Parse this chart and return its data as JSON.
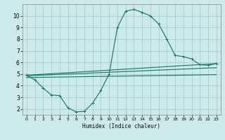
{
  "bg_color": "#cceaea",
  "grid_color": "#aacccc",
  "line_color": "#1a7a6a",
  "xlabel": "Humidex (Indice chaleur)",
  "xlim": [
    -0.5,
    23.5
  ],
  "ylim": [
    1.5,
    11.0
  ],
  "yticks": [
    2,
    3,
    4,
    5,
    6,
    7,
    8,
    9,
    10
  ],
  "xticks": [
    0,
    1,
    2,
    3,
    4,
    5,
    6,
    7,
    8,
    9,
    10,
    11,
    12,
    13,
    14,
    15,
    16,
    17,
    18,
    19,
    20,
    21,
    22,
    23
  ],
  "curve1_x": [
    0,
    1,
    2,
    3,
    4,
    5,
    6,
    7,
    8,
    9,
    10,
    11,
    12,
    13,
    14,
    15,
    16,
    17,
    18,
    19,
    20,
    21,
    22,
    23
  ],
  "curve1_y": [
    4.9,
    4.5,
    3.8,
    3.2,
    3.15,
    2.1,
    1.75,
    1.8,
    2.5,
    3.6,
    5.0,
    9.0,
    10.4,
    10.55,
    10.3,
    10.0,
    9.3,
    8.0,
    6.6,
    6.5,
    6.3,
    5.8,
    5.75,
    5.9
  ],
  "line2_x": [
    0,
    23
  ],
  "line2_y": [
    4.9,
    5.9
  ],
  "line3_x": [
    0,
    23
  ],
  "line3_y": [
    4.85,
    5.55
  ],
  "line4_x": [
    0,
    23
  ],
  "line4_y": [
    4.7,
    4.95
  ]
}
